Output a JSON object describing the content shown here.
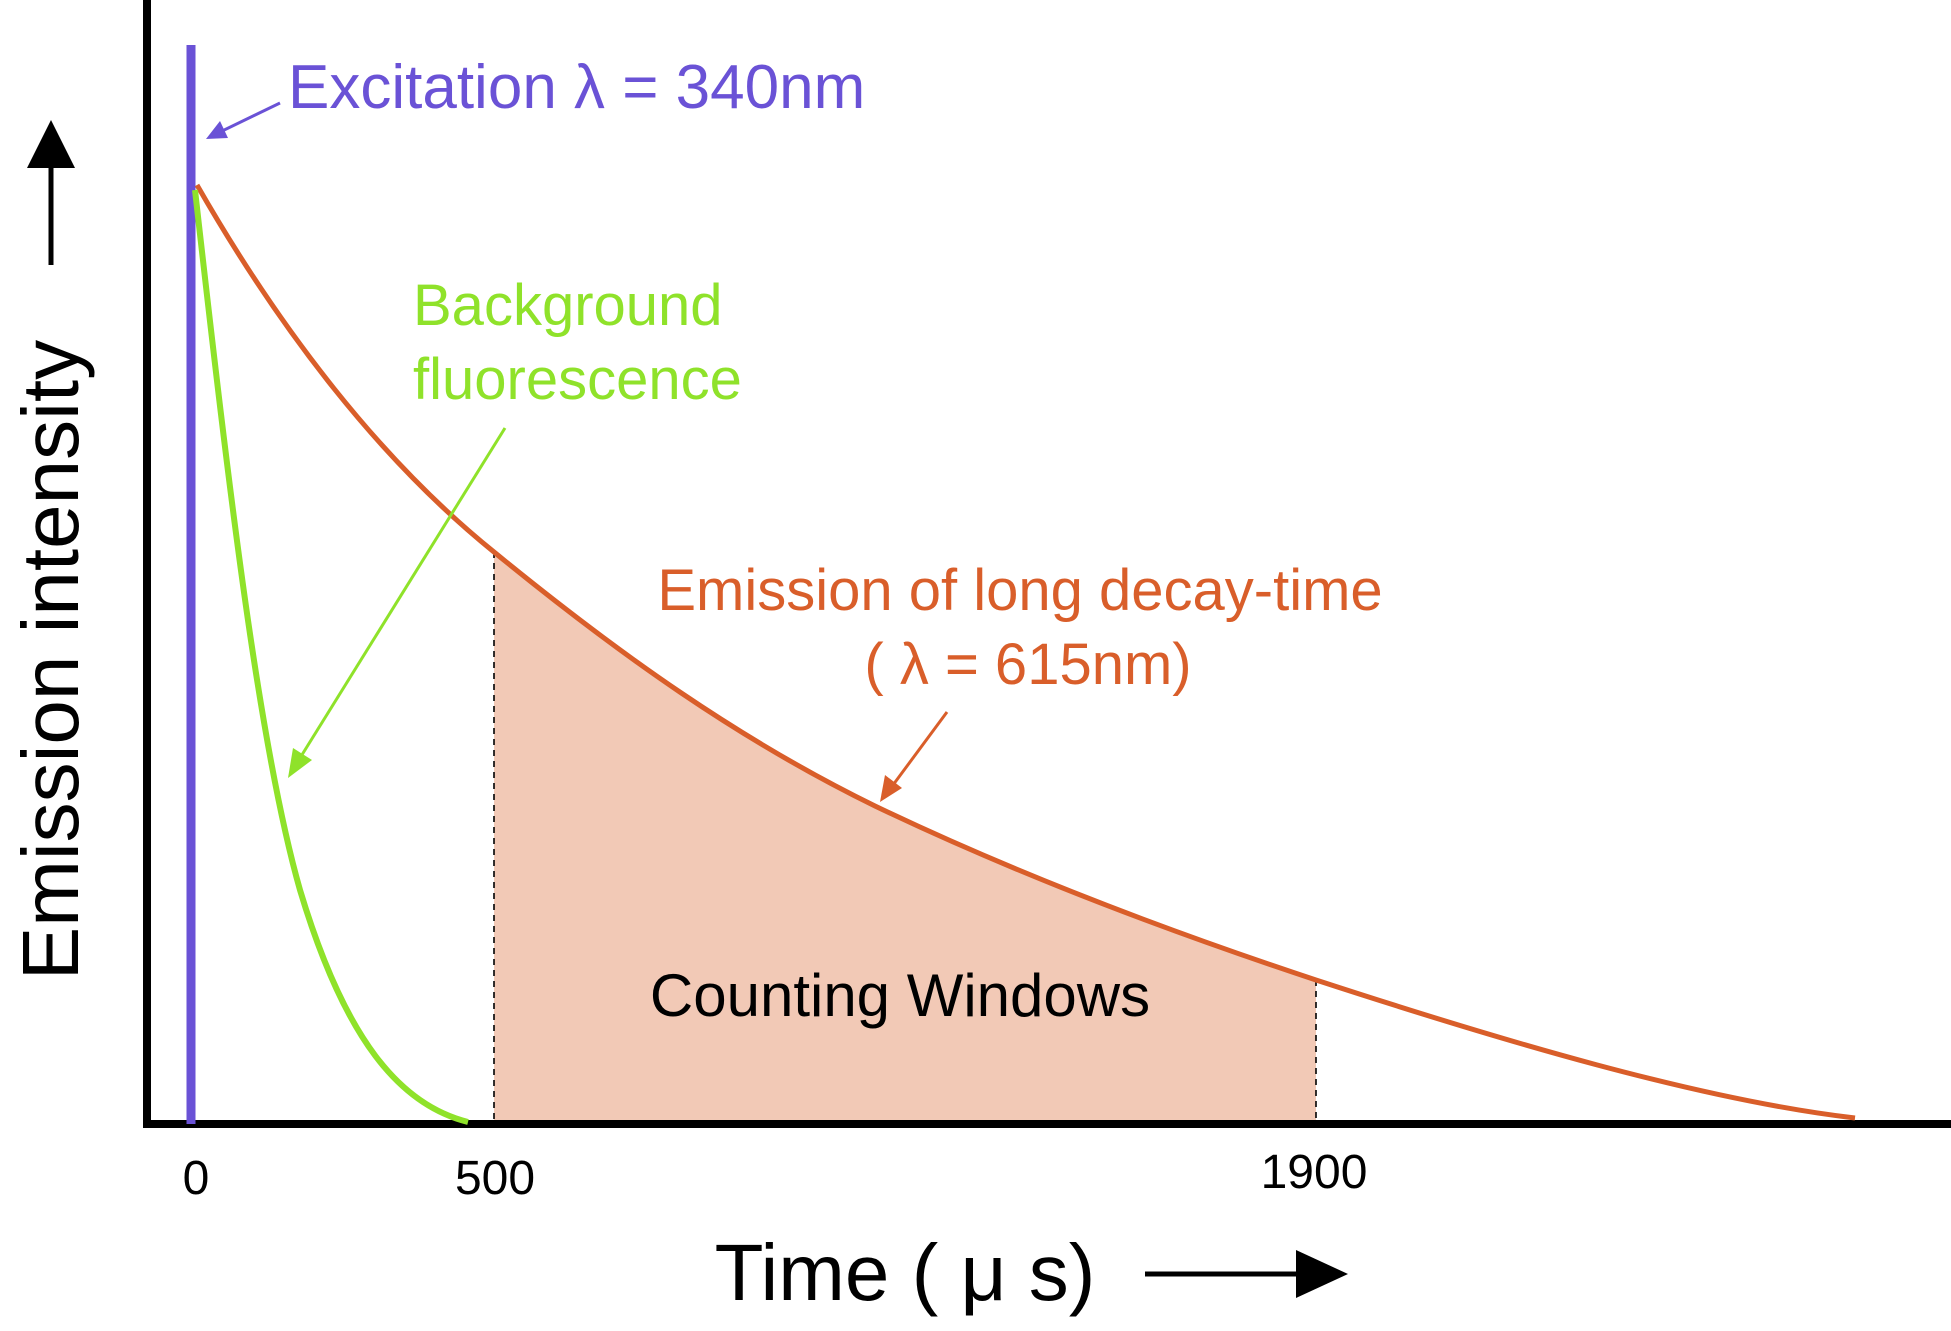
{
  "labels": {
    "excitation": "Excitation λ  = 340nm",
    "background_line1": "Background",
    "background_line2": "fluorescence",
    "emission_line1": "Emission of long decay-time",
    "emission_line2": "( λ  = 615nm)",
    "counting_windows": "Counting Windows",
    "x_axis_title": "Time ( μ s)",
    "y_axis_title": "Emission intensity"
  },
  "ticks": {
    "t0": "0",
    "t500": "500",
    "t1900": "1900"
  },
  "colors": {
    "excitation": "#6a52d6",
    "background": "#8fe22a",
    "emission": "#d95e2a",
    "window_fill": "#f2c9b6",
    "axis": "#000000"
  }
}
